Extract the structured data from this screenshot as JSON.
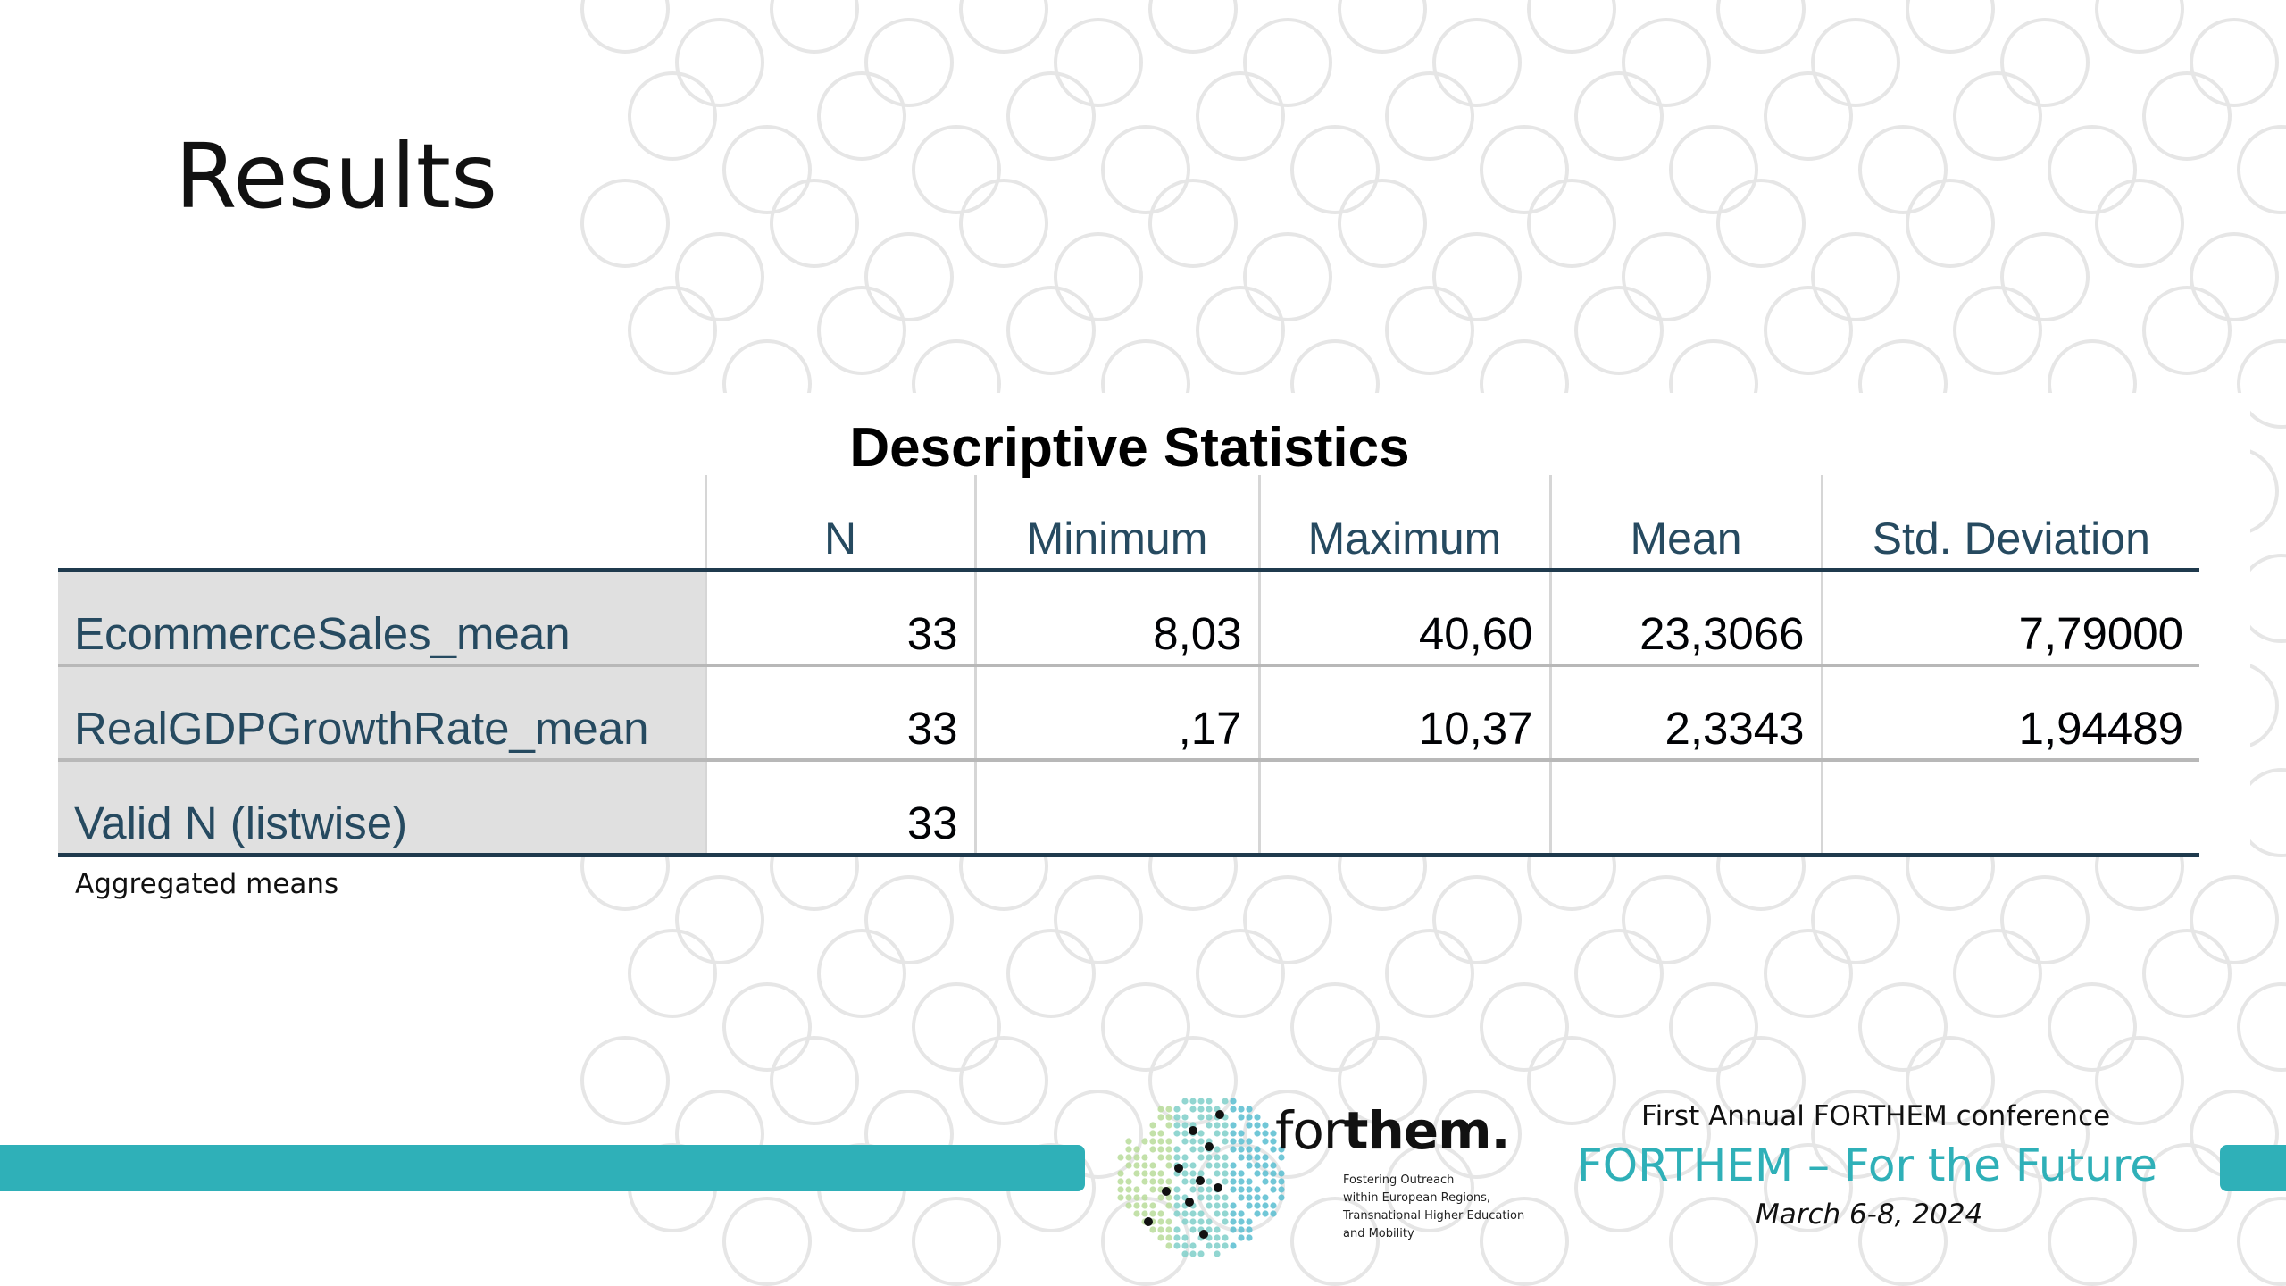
{
  "slide": {
    "title": "Results",
    "note": "Aggregated means"
  },
  "table": {
    "title": "Descriptive Statistics",
    "columns": [
      "",
      "N",
      "Minimum",
      "Maximum",
      "Mean",
      "Std. Deviation"
    ],
    "rows": [
      {
        "label": "EcommerceSales_mean",
        "cells": [
          "33",
          "8,03",
          "40,60",
          "23,3066",
          "7,79000"
        ]
      },
      {
        "label": "RealGDPGrowthRate_mean",
        "cells": [
          "33",
          ",17",
          "10,37",
          "2,3343",
          "1,94489"
        ]
      },
      {
        "label": "Valid N (listwise)",
        "cells": [
          "33",
          "",
          "",
          "",
          ""
        ]
      }
    ]
  },
  "footer": {
    "logo_word_light": "for",
    "logo_word_bold": "them.",
    "logo_tagline": [
      "Fostering Outreach",
      "within European Regions,",
      "Transnational Higher Education",
      "and Mobility"
    ],
    "conference_line1": "First Annual FORTHEM conference",
    "conference_line2": "FORTHEM – For the Future",
    "conference_line3": "March 6-8, 2024"
  },
  "colors": {
    "accent": "#2fb0b8",
    "header_text": "#264a60",
    "row_header_bg": "#e0e0e0",
    "rule": "#1f3a4d"
  }
}
